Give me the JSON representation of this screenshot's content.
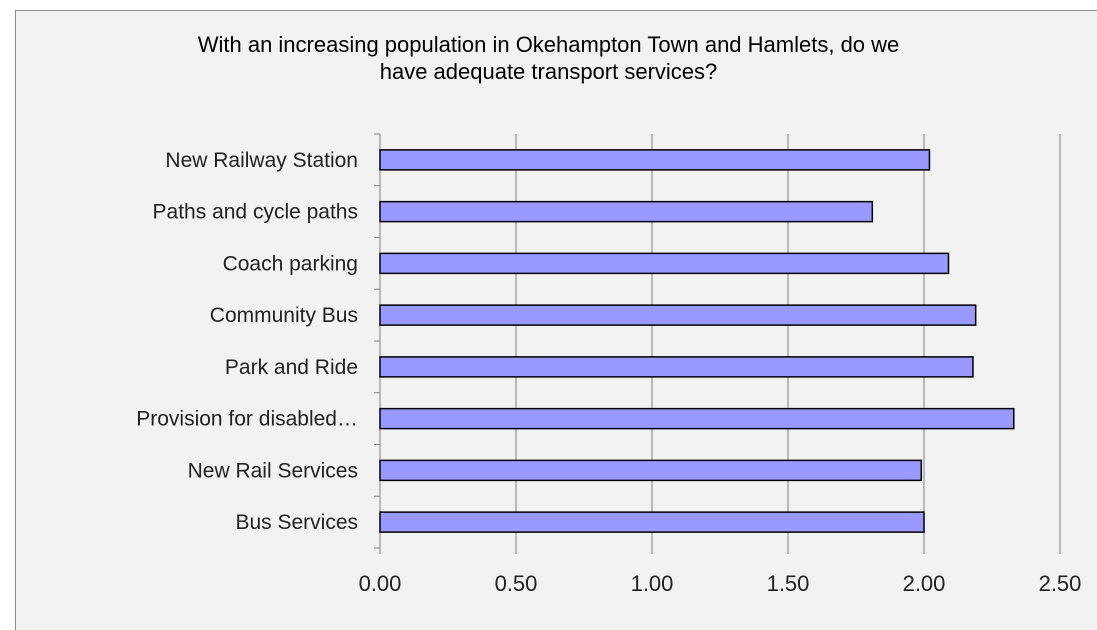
{
  "chart_data": {
    "type": "bar",
    "orientation": "horizontal",
    "title_lines": [
      "With an increasing population in Okehampton Town and Hamlets, do we",
      "have adequate transport services?"
    ],
    "categories": [
      "New Railway Station",
      "Paths and cycle paths",
      "Coach parking",
      "Community Bus",
      "Park and Ride",
      "Provision for disabled…",
      "New Rail Services",
      "Bus Services"
    ],
    "values": [
      2.02,
      1.81,
      2.09,
      2.19,
      2.18,
      2.33,
      1.99,
      2.0
    ],
    "xlim": [
      0,
      2.5
    ],
    "xticks": [
      0,
      0.5,
      1.0,
      1.5,
      2.0,
      2.5
    ],
    "xtick_labels": [
      "0.00",
      "0.50",
      "1.00",
      "1.50",
      "2.00",
      "2.50"
    ],
    "grid": "vertical",
    "legend": "none",
    "bar_color": "#9999ff",
    "bar_edge_color": "#000000",
    "background_color": "#f2f2f2"
  }
}
